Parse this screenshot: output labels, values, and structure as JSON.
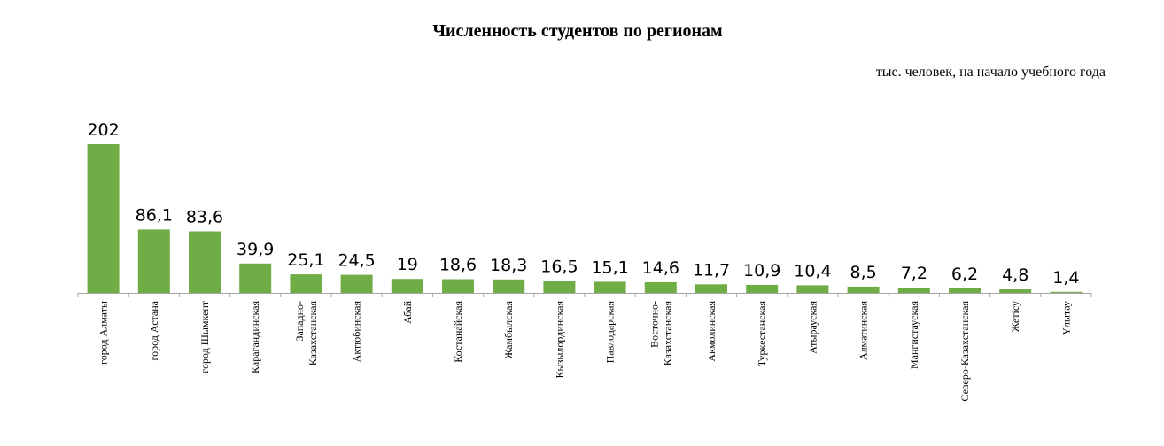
{
  "chart_data": {
    "type": "bar",
    "title": "Численность студентов по регионам",
    "unit_note": "тыс. человек, на начало учебного года",
    "categories": [
      [
        "город Алматы"
      ],
      [
        "город Астана"
      ],
      [
        "город Шымкент"
      ],
      [
        "Карагандинская"
      ],
      [
        "Западно-",
        "Казахстанская"
      ],
      [
        "Актюбинская"
      ],
      [
        "Абай"
      ],
      [
        "Костанайская"
      ],
      [
        "Жамбылская"
      ],
      [
        "Кызылординская"
      ],
      [
        "Павлодарская"
      ],
      [
        "Восточно-",
        "Казахстанская"
      ],
      [
        "Акмолинская"
      ],
      [
        "Туркестанская"
      ],
      [
        "Атырауская"
      ],
      [
        "Алматинская"
      ],
      [
        "Мангистауская"
      ],
      [
        "Северо-Казахстанская"
      ],
      [
        "Жетісу"
      ],
      [
        "Ұлытау"
      ]
    ],
    "values": [
      202,
      86.1,
      83.6,
      39.9,
      25.1,
      24.5,
      19,
      18.6,
      18.3,
      16.5,
      15.1,
      14.6,
      11.7,
      10.9,
      10.4,
      8.5,
      7.2,
      6.2,
      4.8,
      1.4
    ],
    "data_labels": [
      "202",
      "86,1",
      "83,6",
      "39,9",
      "25,1",
      "24,5",
      "19",
      "18,6",
      "18,3",
      "16,5",
      "15,1",
      "14,6",
      "11,7",
      "10,9",
      "10,4",
      "8,5",
      "7,2",
      "6,2",
      "4,8",
      "1,4"
    ],
    "ylim": [
      0,
      202
    ],
    "bar_color": "#70ad47",
    "axis_color": "#a6a6a6",
    "grid": false,
    "legend": "none"
  }
}
